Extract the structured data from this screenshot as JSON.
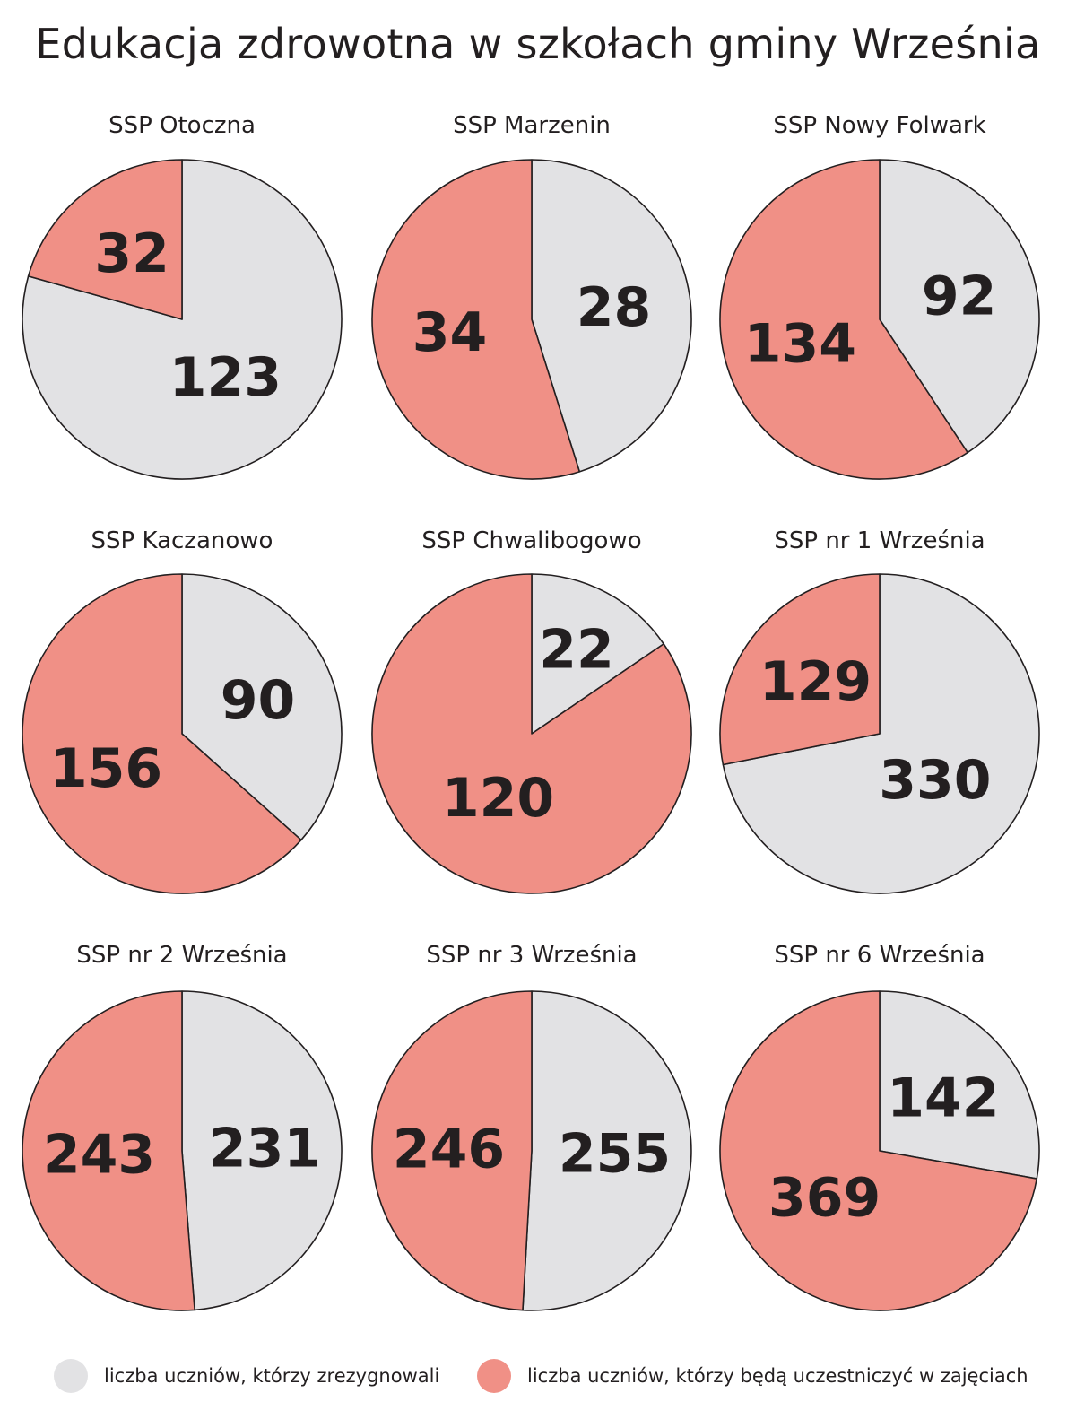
{
  "title": "Edukacja zdrowotna w szkołach gminy Września",
  "colors": {
    "resigned": "#e2e2e4",
    "participating": "#f09086",
    "stroke": "#231f20",
    "text": "#231f20"
  },
  "legend": {
    "resigned_label": "liczba uczniów, którzy zrezygnowali",
    "participating_label": "liczba uczniów, którzy będą uczestniczyć w zajęciach"
  },
  "chart_data": {
    "type": "pie",
    "series_keys": [
      "resigned",
      "participating"
    ],
    "charts": [
      {
        "title": "SSP Otoczna",
        "resigned": 123,
        "participating": 32
      },
      {
        "title": "SSP Marzenin",
        "resigned": 28,
        "participating": 34
      },
      {
        "title": "SSP Nowy Folwark",
        "resigned": 92,
        "participating": 134
      },
      {
        "title": "SSP Kaczanowo",
        "resigned": 90,
        "participating": 156
      },
      {
        "title": "SSP Chwalibogowo",
        "resigned": 22,
        "participating": 120
      },
      {
        "title": "SSP nr 1 Września",
        "resigned": 330,
        "participating": 129
      },
      {
        "title": "SSP nr 2 Września",
        "resigned": 231,
        "participating": 243
      },
      {
        "title": "SSP nr 3 Września",
        "resigned": 255,
        "participating": 246
      },
      {
        "title": "SSP nr 6 Września",
        "resigned": 142,
        "participating": 369
      }
    ],
    "legend_position": "bottom"
  }
}
